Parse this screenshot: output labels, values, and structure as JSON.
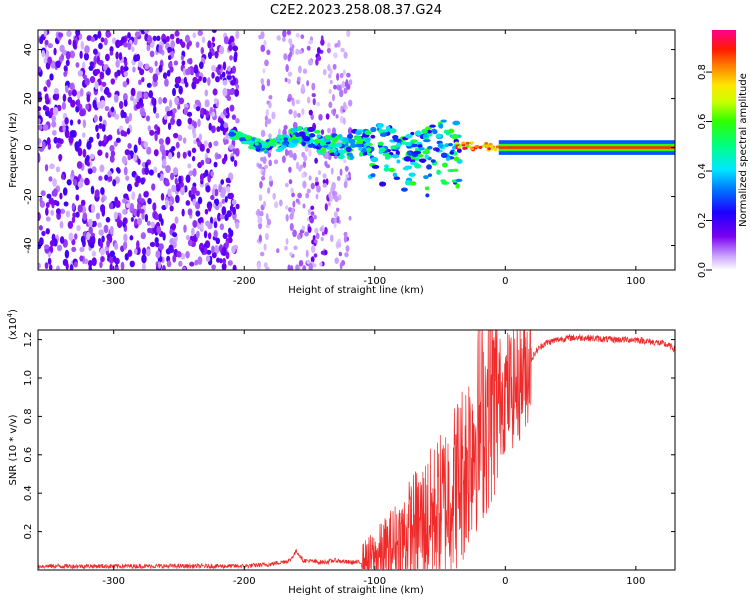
{
  "figure_title": "C2E2.2023.258.08.37.G24",
  "chart_data": [
    {
      "type": "heatmap",
      "title": "C2E2.2023.258.08.37.G24",
      "xlabel": "Height of straight line (km)",
      "ylabel": "Frequency (Hz)",
      "xlim": [
        -358,
        130
      ],
      "ylim": [
        -50,
        48
      ],
      "xticks": [
        -300,
        -200,
        -100,
        0,
        100
      ],
      "xtick_labels": [
        "-300",
        "-200",
        "-100",
        "0",
        "100"
      ],
      "yticks": [
        -40,
        -20,
        0,
        20,
        40
      ],
      "ytick_labels": [
        "-40",
        "-20",
        "0",
        "20",
        "40"
      ],
      "colorbar": {
        "label": "Normalized spectral amplitude",
        "range": [
          0,
          0.97
        ],
        "ticks": [
          0.0,
          0.2,
          0.4,
          0.6,
          0.8
        ],
        "tick_labels": [
          "0.0",
          "0.2",
          "0.4",
          "0.6",
          "0.8"
        ],
        "colormap": "rainbow (white-violet-blue-cyan-green-yellow-red-magenta)"
      },
      "regions": [
        {
          "description": "broadband noise",
          "x_range": [
            -358,
            -205
          ],
          "freq_range": [
            -50,
            48
          ],
          "amplitude": 0.1
        },
        {
          "description": "scattered noise",
          "x_range": [
            -190,
            -118
          ],
          "freq_range": [
            -50,
            48
          ],
          "amplitude": 0.06
        },
        {
          "description": "scintillating signal band",
          "x_range": [
            -208,
            -35
          ],
          "freq_center": 2,
          "amplitude": 0.45
        },
        {
          "description": "stable carrier line",
          "x_range": [
            -35,
            130
          ],
          "freq_center": 0,
          "amplitude": 0.85
        }
      ]
    },
    {
      "type": "line",
      "xlabel": "Height of straight line (km)",
      "ylabel": "SNR (10 * v/v)",
      "y_scale_label": "(x10",
      "y_scale_exponent": "4",
      "y_scale_suffix": ")",
      "xlim": [
        -358,
        130
      ],
      "ylim": [
        0,
        1.25
      ],
      "xticks": [
        -300,
        -200,
        -100,
        0,
        100
      ],
      "xtick_labels": [
        "-300",
        "-200",
        "-100",
        "0",
        "100"
      ],
      "yticks": [
        0.2,
        0.4,
        0.6,
        0.8,
        1.0,
        1.2
      ],
      "ytick_labels": [
        "0.2",
        "0.4",
        "0.6",
        "0.8",
        "1.0",
        "1.2"
      ],
      "series": [
        {
          "name": "SNR",
          "color": "#ee2a2a",
          "x": [
            -358,
            -300,
            -250,
            -200,
            -180,
            -165,
            -160,
            -155,
            -140,
            -130,
            -120,
            -110,
            -100,
            -90,
            -80,
            -70,
            -60,
            -50,
            -40,
            -30,
            -25,
            -20,
            -15,
            -10,
            -5,
            0,
            5,
            10,
            15,
            20,
            25,
            30,
            40,
            50,
            60,
            80,
            100,
            110,
            120,
            125,
            130
          ],
          "y": [
            0.02,
            0.02,
            0.02,
            0.02,
            0.03,
            0.05,
            0.1,
            0.05,
            0.04,
            0.05,
            0.04,
            0.04,
            0.06,
            0.1,
            0.15,
            0.22,
            0.26,
            0.32,
            0.42,
            0.55,
            0.7,
            0.75,
            0.82,
            0.88,
            0.9,
            0.93,
            0.95,
            0.97,
            1.05,
            1.1,
            1.15,
            1.18,
            1.2,
            1.21,
            1.21,
            1.2,
            1.2,
            1.19,
            1.18,
            1.17,
            1.15
          ]
        }
      ]
    }
  ]
}
